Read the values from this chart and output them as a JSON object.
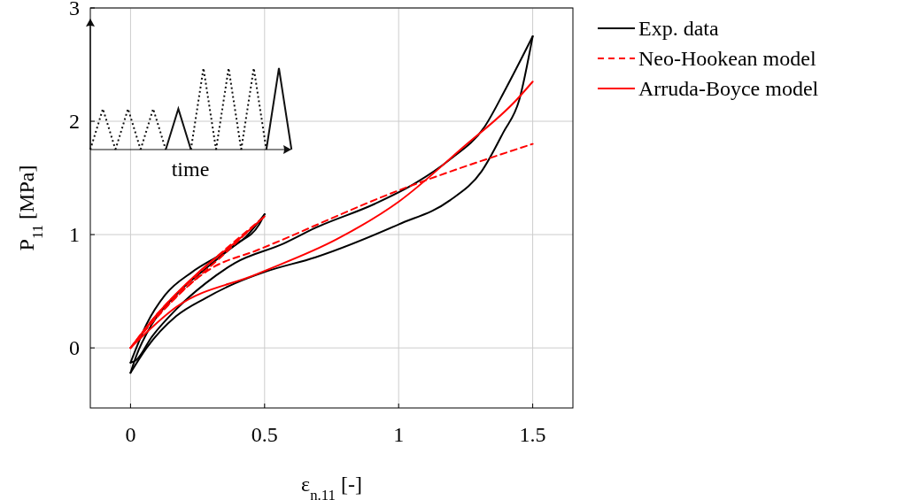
{
  "chart_data": {
    "type": "line",
    "xlabel": "ε$_{n.11}$ [-]",
    "ylabel": "P$_{11}$ [MPa]",
    "xlim": [
      -0.15,
      1.65
    ],
    "ylim": [
      -0.53,
      3
    ],
    "xticks": [
      0,
      0.5,
      1,
      1.5
    ],
    "yticks": [
      0,
      1,
      2,
      3
    ],
    "grid": true,
    "legend": "top right",
    "marker": "none",
    "annotations": [
      "time"
    ],
    "series": [
      {
        "name": "Exp. data",
        "color": "#000000",
        "line_style": "solid",
        "x": [
          0,
          0.06,
          0.13,
          0.23,
          0.34,
          0.43,
          0.5
        ],
        "values": [
          -0.13,
          0.21,
          0.47,
          0.67,
          0.83,
          0.98,
          1.18
        ]
      },
      {
        "color": "#000000",
        "line_style": "solid",
        "x": [
          0,
          0.02,
          0.08,
          0.17,
          0.28,
          0.39,
          0.48,
          0.5
        ],
        "values": [
          -0.22,
          -0.08,
          0.21,
          0.47,
          0.7,
          0.91,
          1.09,
          1.18
        ]
      },
      {
        "color": "#000000",
        "line_style": "solid",
        "x": [
          0,
          0.06,
          0.17,
          0.28,
          0.39,
          0.5,
          0.69,
          1.0,
          1.19,
          1.31,
          1.39,
          1.45,
          1.5
        ],
        "values": [
          -0.22,
          0,
          0.28,
          0.44,
          0.57,
          0.67,
          0.8,
          1.09,
          1.3,
          1.56,
          1.9,
          2.19,
          2.75
        ]
      },
      {
        "color": "#000000",
        "line_style": "solid",
        "x": [
          0,
          0.02,
          0.08,
          0.17,
          0.28,
          0.39,
          0.57,
          0.69,
          0.91,
          1.06,
          1.19,
          1.32,
          1.4,
          1.5
        ],
        "values": [
          -0.13,
          -0.11,
          0.1,
          0.34,
          0.57,
          0.75,
          0.92,
          1.06,
          1.27,
          1.45,
          1.66,
          1.95,
          2.29,
          2.75
        ]
      },
      {
        "name": "Neo-Hookean model",
        "color": "#ff0000",
        "line_style": "dashed",
        "x": [
          0,
          0.1,
          0.25,
          0.5
        ],
        "values": [
          0,
          0.3,
          0.65,
          1.16
        ]
      },
      {
        "color": "#ff0000",
        "line_style": "dashed",
        "x": [
          0.02,
          0.15,
          0.35,
          0.47
        ],
        "values": [
          0.06,
          0.4,
          0.83,
          1.1
        ]
      },
      {
        "color": "#ff0000",
        "line_style": "dashed",
        "x": [
          0,
          0.1,
          0.3,
          0.47,
          1.0,
          1.5
        ],
        "values": [
          0,
          0.28,
          0.7,
          0.86,
          1.39,
          1.8
        ]
      },
      {
        "name": "Arruda-Boyce model",
        "color": "#ff0000",
        "line_style": "solid",
        "x": [
          0,
          0.1,
          0.25,
          0.4,
          0.5
        ],
        "values": [
          0,
          0.3,
          0.66,
          0.95,
          1.16
        ]
      },
      {
        "color": "#ff0000",
        "line_style": "solid",
        "x": [
          0,
          0.17,
          0.47,
          0.77,
          1.0,
          1.24,
          1.44,
          1.5
        ],
        "values": [
          0,
          0.36,
          0.65,
          0.96,
          1.29,
          1.77,
          2.19,
          2.35
        ]
      }
    ]
  }
}
